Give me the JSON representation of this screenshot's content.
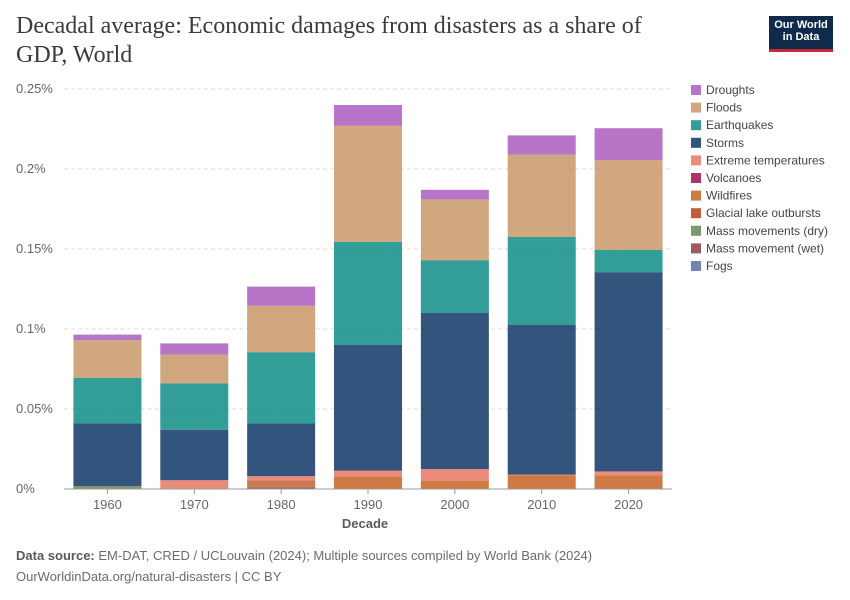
{
  "title": "Decadal average: Economic damages from disasters as a share of GDP, World",
  "logo": {
    "line1": "Our World",
    "line2": "in Data"
  },
  "footer": {
    "source_label": "Data source:",
    "source_text": "EM-DAT, CRED / UCLouvain (2024); Multiple sources compiled by World Bank (2024)",
    "url_text": "OurWorldinData.org/natural-disasters | CC BY"
  },
  "chart_data": {
    "type": "bar",
    "stacked": true,
    "title": "Decadal average: Economic damages from disasters as a share of GDP, World",
    "xlabel": "Decade",
    "ylabel": "",
    "ylim": [
      0,
      0.25
    ],
    "yticks": [
      0,
      0.05,
      0.1,
      0.15,
      0.2,
      0.25
    ],
    "ytick_labels": [
      "0%",
      "0.05%",
      "0.1%",
      "0.15%",
      "0.2%",
      "0.25%"
    ],
    "categories": [
      "1960",
      "1970",
      "1980",
      "1990",
      "2000",
      "2010",
      "2020"
    ],
    "legend_position": "right",
    "series": [
      {
        "name": "Fogs",
        "color": "#4c6a9c",
        "values": [
          0,
          0,
          0,
          0,
          0,
          0,
          0
        ]
      },
      {
        "name": "Mass movement (wet)",
        "color": "#883039",
        "values": [
          0,
          0,
          0.001,
          0,
          0,
          0,
          0
        ]
      },
      {
        "name": "Mass movements (dry)",
        "color": "#578145",
        "values": [
          0.0015,
          0,
          0.0003,
          0,
          0,
          0,
          0
        ]
      },
      {
        "name": "Glacial lake outbursts",
        "color": "#b13507",
        "values": [
          0,
          0,
          0,
          0,
          0,
          0,
          0
        ]
      },
      {
        "name": "Wildfires",
        "color": "#c05917",
        "values": [
          0.0002,
          0.0005,
          0.0035,
          0.0075,
          0.005,
          0.0085,
          0.0085
        ]
      },
      {
        "name": "Volcanoes",
        "color": "#970046",
        "values": [
          0,
          0,
          0.0004,
          0,
          0,
          0,
          0
        ]
      },
      {
        "name": "Extreme temperatures",
        "color": "#e56e5a",
        "values": [
          0,
          0.005,
          0.0028,
          0.004,
          0.0075,
          0.0005,
          0.0025
        ]
      },
      {
        "name": "Storms",
        "color": "#00295b",
        "values": [
          0.0393,
          0.0315,
          0.033,
          0.0785,
          0.0975,
          0.0935,
          0.1245
        ]
      },
      {
        "name": "Earthquakes",
        "color": "#00847e",
        "values": [
          0.0285,
          0.029,
          0.0445,
          0.0645,
          0.033,
          0.055,
          0.014
        ]
      },
      {
        "name": "Floods",
        "color": "#c4915e",
        "values": [
          0.0235,
          0.018,
          0.029,
          0.0725,
          0.038,
          0.0515,
          0.056
        ]
      },
      {
        "name": "Droughts",
        "color": "#a652ba",
        "values": [
          0.0035,
          0.007,
          0.012,
          0.013,
          0.006,
          0.012,
          0.02
        ]
      }
    ],
    "legend_order": [
      "Droughts",
      "Floods",
      "Earthquakes",
      "Storms",
      "Extreme temperatures",
      "Volcanoes",
      "Wildfires",
      "Glacial lake outbursts",
      "Mass movements (dry)",
      "Mass movement (wet)",
      "Fogs"
    ]
  }
}
